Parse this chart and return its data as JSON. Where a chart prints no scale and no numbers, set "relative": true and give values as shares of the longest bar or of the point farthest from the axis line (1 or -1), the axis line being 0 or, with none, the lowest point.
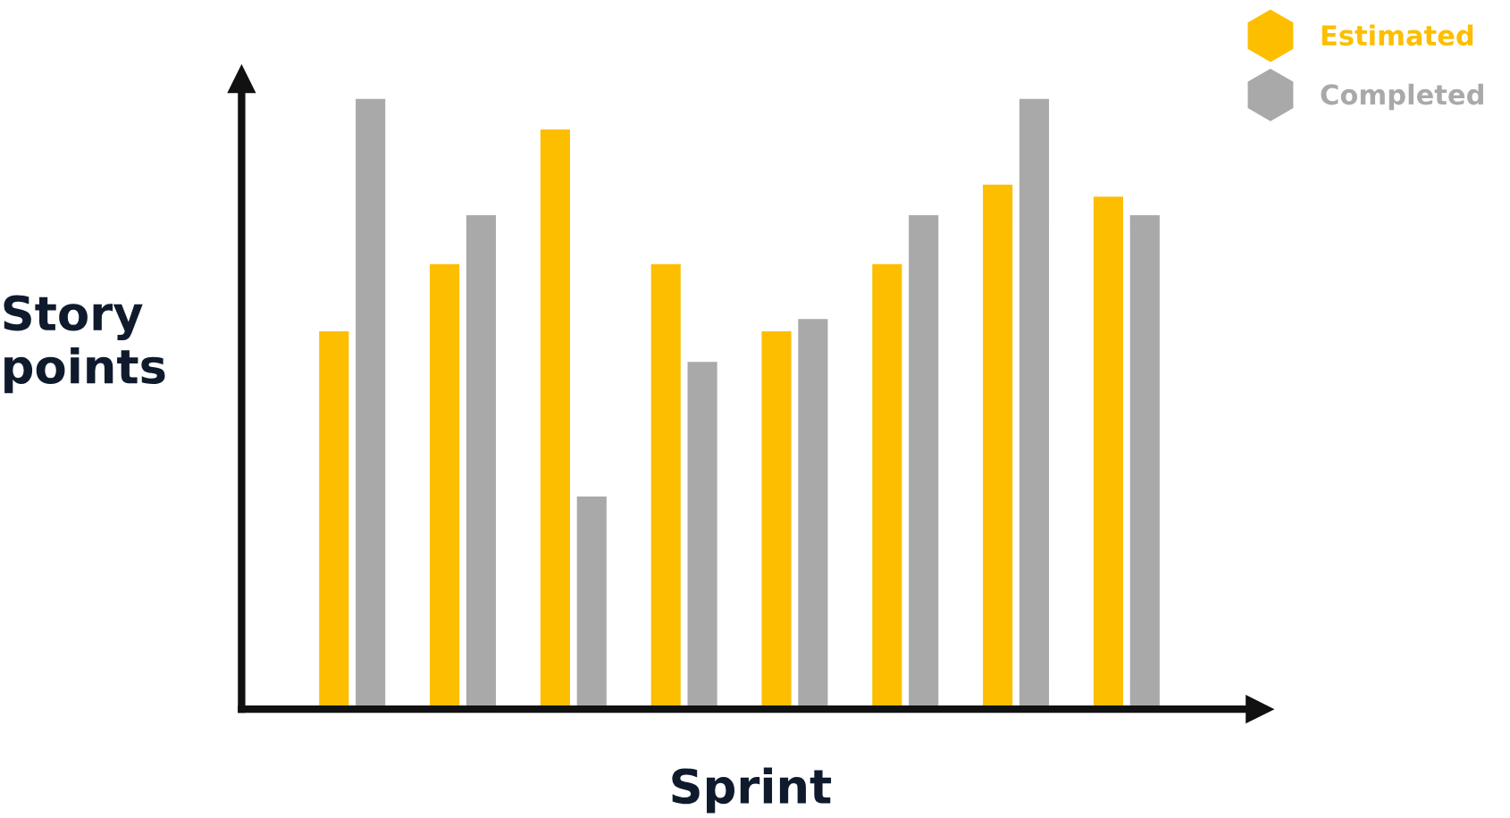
{
  "chart_data": {
    "type": "bar",
    "relative": true,
    "xlabel": "Sprint",
    "ylabel": "Story points",
    "categories": [
      null,
      null,
      null,
      null,
      null,
      null,
      null,
      null
    ],
    "series": [
      {
        "name": "Estimated",
        "color": "#fdbe00",
        "values": [
          0.62,
          0.73,
          0.95,
          0.73,
          0.62,
          0.73,
          0.86,
          0.84
        ]
      },
      {
        "name": "Completed",
        "color": "#a9a9a9",
        "values": [
          1,
          0.81,
          0.35,
          0.57,
          0.64,
          0.81,
          1,
          0.81
        ]
      }
    ],
    "legend": "top right",
    "grid": false
  }
}
